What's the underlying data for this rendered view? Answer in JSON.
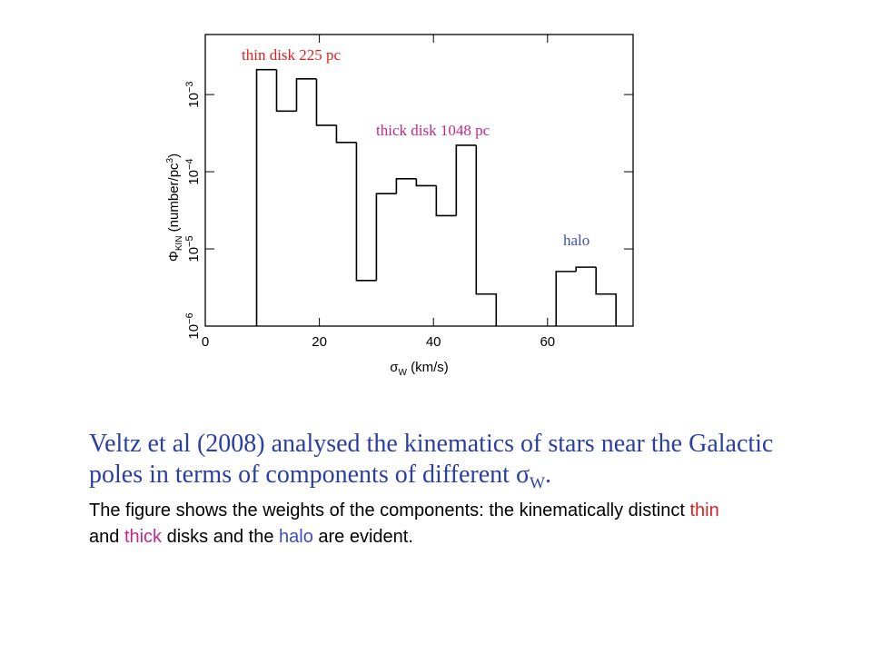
{
  "chart_data": {
    "type": "histogram",
    "bins": [
      9,
      12.5,
      16,
      19.5,
      23,
      26.5,
      30,
      33.5,
      37,
      40.5,
      44,
      47.5,
      51,
      54.5,
      58,
      61.5,
      65,
      68.5,
      72
    ],
    "values": [
      0.0021,
      0.00061,
      0.0016,
      0.0004,
      0.00024,
      3.9e-06,
      5.2e-05,
      8.1e-05,
      6.6e-05,
      2.7e-05,
      0.00022,
      2.6e-06,
      null,
      null,
      null,
      5.1e-06,
      5.8e-06,
      2.6e-06
    ],
    "color": "#000000",
    "xlim": [
      0,
      75
    ],
    "xticks": [
      0,
      20,
      40,
      60
    ],
    "ylim": [
      1e-06,
      0.006
    ],
    "log_y": true,
    "yticks": [
      {
        "value": 1e-06,
        "label": "10−6"
      },
      {
        "value": 1e-05,
        "label": "10−5"
      },
      {
        "value": 0.0001,
        "label": "10−4"
      },
      {
        "value": 0.001,
        "label": "10−3"
      }
    ],
    "xlabel": {
      "text": "σ",
      "sub": "W",
      "unit": " (km/s)"
    },
    "ylabel": {
      "text": "Φ",
      "sub": "KIN",
      "unit": " (number/pc",
      "sup": "3",
      "end": ")"
    },
    "annotations": [
      {
        "text": "thin disk 225 pc",
        "color": "#e0201f"
      },
      {
        "text": "thick disk 1048 pc",
        "color": "#c0288c"
      },
      {
        "text": "halo",
        "color": "#3c4fc0"
      }
    ]
  },
  "slide": {
    "heading": {
      "color": "#2b3ea6",
      "segments": [
        "Veltz et al (2008) analysed the kinematics of stars near the Galactic poles in terms of components of different ",
        "σ",
        "W",
        "."
      ]
    },
    "body": {
      "segments": [
        "The figure shows the weights of the components: the kinematically distinct ",
        "thin",
        " and ",
        "thick",
        " disks and the ",
        "halo",
        " are evident."
      ],
      "colors": {
        "1": "#e0201f",
        "3": "#c0288c",
        "5": "#3c4fc0"
      }
    }
  }
}
